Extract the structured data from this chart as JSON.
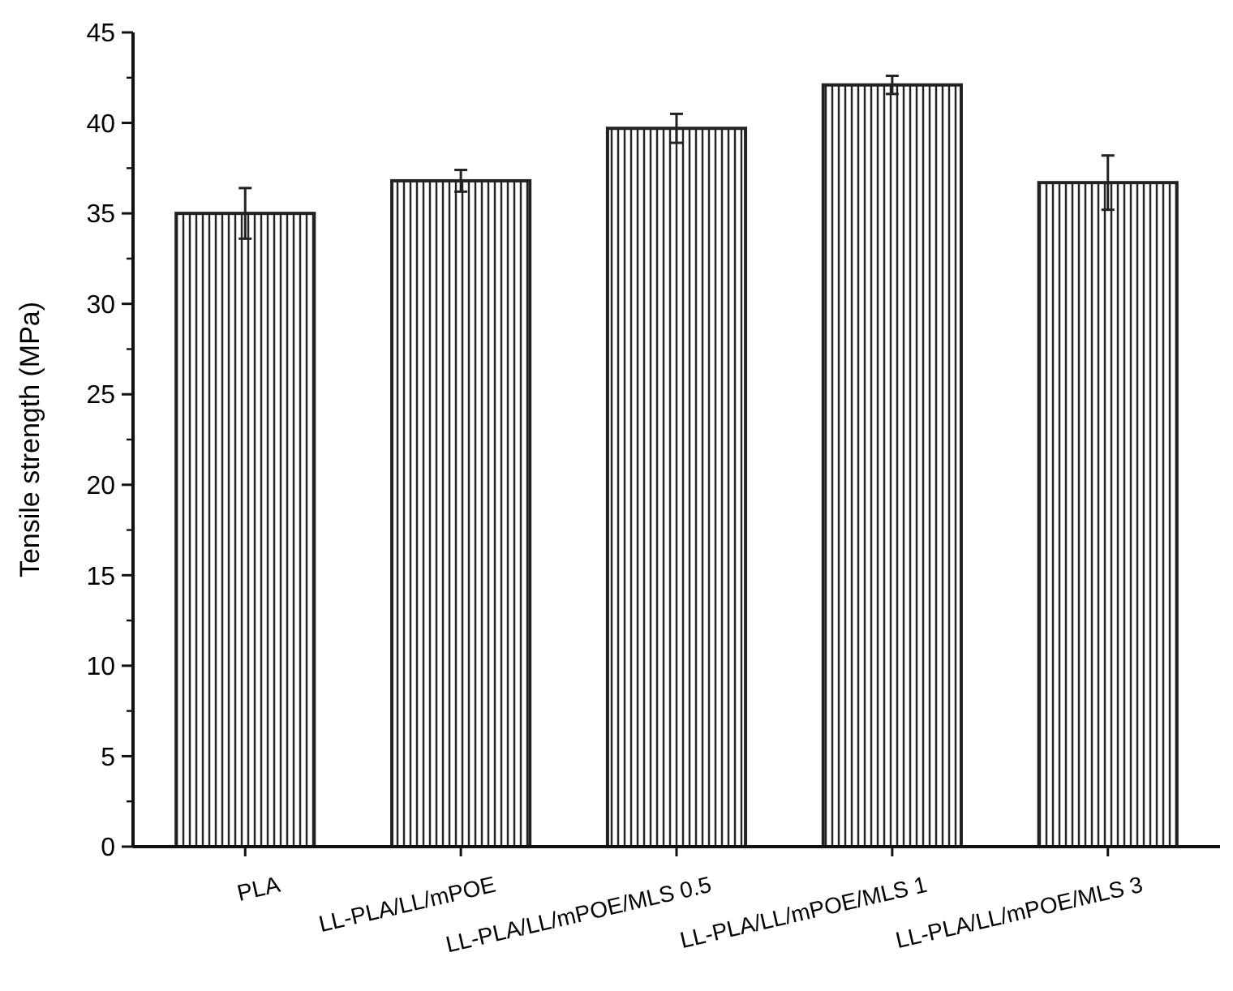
{
  "chart_data": {
    "type": "bar",
    "ylabel": "Tensile strength (MPa)",
    "categories": [
      "PLA",
      "LL-PLA/LL/mPOE",
      "LL-PLA/LL/mPOE/MLS 0.5",
      "LL-PLA/LL/mPOE/MLS 1",
      "LL-PLA/LL/mPOE/MLS 3"
    ],
    "values": [
      35.0,
      36.8,
      39.7,
      42.1,
      36.7
    ],
    "errors": [
      1.4,
      0.6,
      0.8,
      0.5,
      1.5
    ],
    "color": "#222222",
    "ylim": [
      0,
      45
    ],
    "yticks": [
      0,
      5,
      10,
      15,
      20,
      25,
      30,
      35,
      40,
      45
    ],
    "grid": false
  }
}
